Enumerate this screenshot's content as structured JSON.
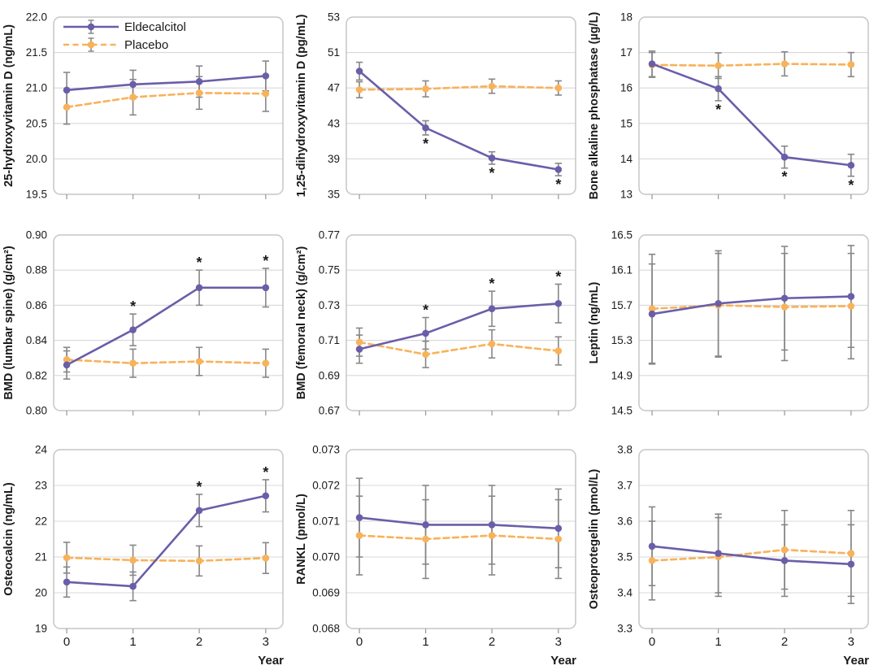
{
  "sig_marker": "*",
  "x_axis_label": "Year",
  "x_tick_labels": [
    "0",
    "1",
    "2",
    "3"
  ],
  "legend": {
    "position": "top-left-first-panel",
    "items": [
      {
        "label": "Eldecalcitol",
        "series": "eldecalcitol",
        "line_style": "solid"
      },
      {
        "label": "Placebo",
        "series": "placebo",
        "line_style": "dashed"
      }
    ]
  },
  "colors": {
    "eldecalcitol": "#6a5ea9",
    "placebo": "#f8b25a",
    "error_bar": "#878787",
    "gridline": "#d9d9d9",
    "frame": "#c6c6c6",
    "text": "#1a1a1a"
  },
  "chart_data": [
    {
      "type": "line",
      "ylabel": "25-hydroxyvitamin D (ng/mL)",
      "ylim": [
        19.5,
        22.0
      ],
      "yticks": [
        19.5,
        20.0,
        20.5,
        21.0,
        21.5,
        22.0
      ],
      "ytick_labels": [
        "19.5",
        "20.0",
        "20.5",
        "21.0",
        "21.5",
        "22.0"
      ],
      "x": [
        0,
        1,
        2,
        3
      ],
      "show_legend": true,
      "series": [
        {
          "name": "Eldecalcitol",
          "key": "eldecalcitol",
          "values": [
            20.97,
            21.05,
            21.09,
            21.17
          ],
          "errors": [
            0.25,
            0.2,
            0.22,
            0.21
          ],
          "sig_years": [],
          "sig_placement": "above"
        },
        {
          "name": "Placebo",
          "key": "placebo",
          "values": [
            20.73,
            20.87,
            20.93,
            20.92
          ],
          "errors": [
            0.24,
            0.25,
            0.23,
            0.25
          ],
          "sig_years": [],
          "sig_placement": "above"
        }
      ]
    },
    {
      "type": "line",
      "ylabel": "1,25-dihydroxyvitamin D (pg/mL)",
      "ylim": [
        35,
        53
      ],
      "yticks": [
        35,
        39,
        43,
        47,
        51,
        53
      ],
      "ytick_labels": [
        "35",
        "39",
        "43",
        "47",
        "51",
        "53"
      ],
      "x": [
        0,
        1,
        2,
        3
      ],
      "show_legend": false,
      "series": [
        {
          "name": "Eldecalcitol",
          "key": "eldecalcitol",
          "values": [
            48.9,
            42.5,
            39.1,
            37.8
          ],
          "errors": [
            1.0,
            0.8,
            0.7,
            0.7
          ],
          "sig_years": [
            1,
            2,
            3
          ],
          "sig_placement": "below"
        },
        {
          "name": "Placebo",
          "key": "placebo",
          "values": [
            46.8,
            46.9,
            47.2,
            47.0
          ],
          "errors": [
            0.9,
            0.9,
            0.8,
            0.8
          ],
          "sig_years": [],
          "sig_placement": "above"
        }
      ]
    },
    {
      "type": "line",
      "ylabel": "Bone alkaline phosphatase (µg/L)",
      "ylim": [
        13,
        18
      ],
      "yticks": [
        13,
        14,
        15,
        16,
        17,
        18
      ],
      "ytick_labels": [
        "13",
        "14",
        "15",
        "16",
        "17",
        "18"
      ],
      "x": [
        0,
        1,
        2,
        3
      ],
      "show_legend": false,
      "series": [
        {
          "name": "Eldecalcitol",
          "key": "eldecalcitol",
          "values": [
            16.68,
            15.98,
            14.05,
            13.82
          ],
          "errors": [
            0.36,
            0.34,
            0.31,
            0.31
          ],
          "sig_years": [
            1,
            2,
            3
          ],
          "sig_placement": "below"
        },
        {
          "name": "Placebo",
          "key": "placebo",
          "values": [
            16.65,
            16.63,
            16.68,
            16.66
          ],
          "errors": [
            0.35,
            0.36,
            0.34,
            0.34
          ],
          "sig_years": [],
          "sig_placement": "above"
        }
      ]
    },
    {
      "type": "line",
      "ylabel": "BMD (lumbar spine) (g/cm²)",
      "ylim": [
        0.8,
        0.9
      ],
      "yticks": [
        0.8,
        0.82,
        0.84,
        0.86,
        0.88,
        0.9
      ],
      "ytick_labels": [
        "0.80",
        "0.82",
        "0.84",
        "0.86",
        "0.88",
        "0.90"
      ],
      "x": [
        0,
        1,
        2,
        3
      ],
      "show_legend": false,
      "series": [
        {
          "name": "Eldecalcitol",
          "key": "eldecalcitol",
          "values": [
            0.826,
            0.846,
            0.87,
            0.87
          ],
          "errors": [
            0.008,
            0.009,
            0.01,
            0.011
          ],
          "sig_years": [
            1,
            2,
            3
          ],
          "sig_placement": "above"
        },
        {
          "name": "Placebo",
          "key": "placebo",
          "values": [
            0.829,
            0.827,
            0.828,
            0.827
          ],
          "errors": [
            0.007,
            0.008,
            0.008,
            0.008
          ],
          "sig_years": [],
          "sig_placement": "above"
        }
      ]
    },
    {
      "type": "line",
      "ylabel": "BMD (femoral neck) (g/cm²)",
      "ylim": [
        0.67,
        0.77
      ],
      "yticks": [
        0.67,
        0.69,
        0.71,
        0.73,
        0.75,
        0.77
      ],
      "ytick_labels": [
        "0.67",
        "0.69",
        "0.71",
        "0.73",
        "0.75",
        "0.77"
      ],
      "x": [
        0,
        1,
        2,
        3
      ],
      "show_legend": false,
      "series": [
        {
          "name": "Eldecalcitol",
          "key": "eldecalcitol",
          "values": [
            0.705,
            0.714,
            0.728,
            0.731
          ],
          "errors": [
            0.008,
            0.009,
            0.01,
            0.011
          ],
          "sig_years": [
            1,
            2,
            3
          ],
          "sig_placement": "above"
        },
        {
          "name": "Placebo",
          "key": "placebo",
          "values": [
            0.709,
            0.702,
            0.708,
            0.704
          ],
          "errors": [
            0.008,
            0.0075,
            0.008,
            0.008
          ],
          "sig_years": [],
          "sig_placement": "above"
        }
      ]
    },
    {
      "type": "line",
      "ylabel": "Leptin (ng/mL)",
      "ylim": [
        14.5,
        16.5
      ],
      "yticks": [
        14.5,
        14.9,
        15.3,
        15.7,
        16.1,
        16.5
      ],
      "ytick_labels": [
        "14.5",
        "14.9",
        "15.3",
        "15.7",
        "16.1",
        "16.5"
      ],
      "x": [
        0,
        1,
        2,
        3
      ],
      "show_legend": false,
      "series": [
        {
          "name": "Eldecalcitol",
          "key": "eldecalcitol",
          "values": [
            15.6,
            15.72,
            15.78,
            15.8
          ],
          "errors": [
            0.57,
            0.6,
            0.59,
            0.58
          ],
          "sig_years": [],
          "sig_placement": "above"
        },
        {
          "name": "Placebo",
          "key": "placebo",
          "values": [
            15.66,
            15.7,
            15.68,
            15.69
          ],
          "errors": [
            0.62,
            0.59,
            0.61,
            0.6
          ],
          "sig_years": [],
          "sig_placement": "above"
        }
      ]
    },
    {
      "type": "line",
      "ylabel": "Osteocalcin (ng/mL)",
      "ylim": [
        19,
        24
      ],
      "yticks": [
        19,
        20,
        21,
        22,
        23,
        24
      ],
      "ytick_labels": [
        "19",
        "20",
        "21",
        "22",
        "23",
        "24"
      ],
      "x": [
        0,
        1,
        2,
        3
      ],
      "show_legend": false,
      "series": [
        {
          "name": "Eldecalcitol",
          "key": "eldecalcitol",
          "values": [
            20.3,
            20.18,
            22.3,
            22.71
          ],
          "errors": [
            0.42,
            0.4,
            0.45,
            0.45
          ],
          "sig_years": [
            2,
            3
          ],
          "sig_placement": "above"
        },
        {
          "name": "Placebo",
          "key": "placebo",
          "values": [
            20.98,
            20.91,
            20.89,
            20.97
          ],
          "errors": [
            0.43,
            0.42,
            0.42,
            0.43
          ],
          "sig_years": [],
          "sig_placement": "above"
        }
      ]
    },
    {
      "type": "line",
      "ylabel": "RANKL (pmol/L)",
      "ylim": [
        0.068,
        0.073
      ],
      "yticks": [
        0.068,
        0.069,
        0.07,
        0.071,
        0.072,
        0.073
      ],
      "ytick_labels": [
        "0.068",
        "0.069",
        "0.070",
        "0.071",
        "0.072",
        "0.073"
      ],
      "x": [
        0,
        1,
        2,
        3
      ],
      "show_legend": false,
      "series": [
        {
          "name": "Eldecalcitol",
          "key": "eldecalcitol",
          "values": [
            0.0711,
            0.0709,
            0.0709,
            0.0708
          ],
          "errors": [
            0.0011,
            0.0011,
            0.0011,
            0.0011
          ],
          "sig_years": [],
          "sig_placement": "above"
        },
        {
          "name": "Placebo",
          "key": "placebo",
          "values": [
            0.0706,
            0.0705,
            0.0706,
            0.0705
          ],
          "errors": [
            0.0011,
            0.0011,
            0.0011,
            0.0011
          ],
          "sig_years": [],
          "sig_placement": "above"
        }
      ]
    },
    {
      "type": "line",
      "ylabel": "Osteoprotegelin (pmol/L)",
      "ylim": [
        3.3,
        3.8
      ],
      "yticks": [
        3.3,
        3.4,
        3.5,
        3.6,
        3.7,
        3.8
      ],
      "ytick_labels": [
        "3.3",
        "3.4",
        "3.5",
        "3.6",
        "3.7",
        "3.8"
      ],
      "x": [
        0,
        1,
        2,
        3
      ],
      "show_legend": false,
      "series": [
        {
          "name": "Eldecalcitol",
          "key": "eldecalcitol",
          "values": [
            3.53,
            3.51,
            3.49,
            3.48
          ],
          "errors": [
            0.11,
            0.11,
            0.1,
            0.11
          ],
          "sig_years": [],
          "sig_placement": "above"
        },
        {
          "name": "Placebo",
          "key": "placebo",
          "values": [
            3.49,
            3.5,
            3.52,
            3.51
          ],
          "errors": [
            0.11,
            0.11,
            0.11,
            0.12
          ],
          "sig_years": [],
          "sig_placement": "above"
        }
      ]
    }
  ]
}
